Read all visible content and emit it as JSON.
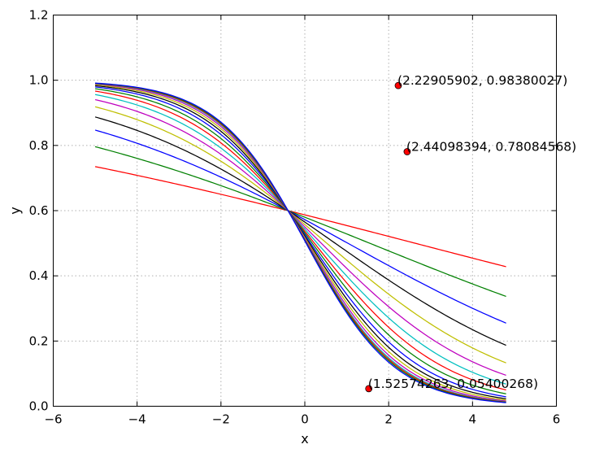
{
  "chart_data": {
    "type": "line",
    "title": "",
    "xlabel": "x",
    "ylabel": "y",
    "xlim": [
      -6,
      6
    ],
    "ylim": [
      0.0,
      1.2
    ],
    "grid": true,
    "x_ticks": [
      -6,
      -4,
      -2,
      0,
      2,
      4,
      6
    ],
    "x_tick_labels": [
      "−6",
      "−4",
      "−2",
      "0",
      "2",
      "4",
      "6"
    ],
    "y_ticks": [
      0.0,
      0.2,
      0.4,
      0.6,
      0.8,
      1.0,
      1.2
    ],
    "y_tick_labels": [
      "0.0",
      "0.2",
      "0.4",
      "0.6",
      "0.8",
      "1.0",
      "1.2"
    ],
    "x_range": [
      -5.0,
      4.8
    ],
    "series": [
      {
        "color": "#ff0000",
        "x": [
          -5.0,
          -2.5,
          -0.4,
          2.0,
          4.8
        ],
        "y": [
          0.735,
          0.67,
          0.6,
          0.52,
          0.428
        ]
      },
      {
        "color": "#008000",
        "x": [
          -5.0,
          -2.5,
          -0.4,
          2.0,
          4.8
        ],
        "y": [
          0.797,
          0.715,
          0.6,
          0.46,
          0.337
        ]
      },
      {
        "color": "#0000ff",
        "x": [
          -5.0,
          -2.5,
          -0.4,
          2.0,
          4.8
        ],
        "y": [
          0.848,
          0.765,
          0.6,
          0.4,
          0.255
        ]
      },
      {
        "color": "#000000",
        "x": [
          -5.0,
          -2.5,
          -0.4,
          2.0,
          4.8
        ],
        "y": [
          0.89,
          0.805,
          0.6,
          0.35,
          0.187
        ]
      },
      {
        "color": "#bfbf00",
        "x": [
          -5.0,
          -2.5,
          -0.4,
          2.0,
          4.8
        ],
        "y": [
          0.92,
          0.84,
          0.6,
          0.305,
          0.133
        ]
      },
      {
        "color": "#bf00bf",
        "x": [
          -5.0,
          -2.5,
          -0.4,
          2.0,
          4.8
        ],
        "y": [
          0.943,
          0.867,
          0.6,
          0.27,
          0.095
        ]
      },
      {
        "color": "#00bfbf",
        "x": [
          -5.0,
          -2.5,
          -0.4,
          2.0,
          4.8
        ],
        "y": [
          0.96,
          0.888,
          0.6,
          0.24,
          0.068
        ]
      },
      {
        "color": "#ff0000",
        "x": [
          -5.0,
          -2.5,
          -0.4,
          2.0,
          4.8
        ],
        "y": [
          0.971,
          0.905,
          0.6,
          0.215,
          0.05
        ]
      },
      {
        "color": "#008000",
        "x": [
          -5.0,
          -2.5,
          -0.4,
          2.0,
          4.8
        ],
        "y": [
          0.979,
          0.918,
          0.6,
          0.195,
          0.038
        ]
      },
      {
        "color": "#0000ff",
        "x": [
          -5.0,
          -2.5,
          -0.4,
          2.0,
          4.8
        ],
        "y": [
          0.985,
          0.928,
          0.6,
          0.18,
          0.029
        ]
      },
      {
        "color": "#000000",
        "x": [
          -5.0,
          -2.5,
          -0.4,
          2.0,
          4.8
        ],
        "y": [
          0.989,
          0.936,
          0.6,
          0.168,
          0.023
        ]
      },
      {
        "color": "#bfbf00",
        "x": [
          -5.0,
          -2.5,
          -0.4,
          2.0,
          4.8
        ],
        "y": [
          0.992,
          0.942,
          0.6,
          0.158,
          0.019
        ]
      },
      {
        "color": "#bf00bf",
        "x": [
          -5.0,
          -2.5,
          -0.4,
          2.0,
          4.8
        ],
        "y": [
          0.994,
          0.947,
          0.6,
          0.15,
          0.016
        ]
      },
      {
        "color": "#00bfbf",
        "x": [
          -5.0,
          -2.5,
          -0.4,
          2.0,
          4.8
        ],
        "y": [
          0.995,
          0.951,
          0.6,
          0.144,
          0.014
        ]
      },
      {
        "color": "#ff0000",
        "x": [
          -5.0,
          -2.5,
          -0.4,
          2.0,
          4.8
        ],
        "y": [
          0.996,
          0.954,
          0.6,
          0.139,
          0.013
        ]
      },
      {
        "color": "#008000",
        "x": [
          -5.0,
          -2.5,
          -0.4,
          2.0,
          4.8
        ],
        "y": [
          0.997,
          0.957,
          0.6,
          0.135,
          0.012
        ]
      },
      {
        "color": "#0000ff",
        "x": [
          -5.0,
          -2.5,
          -0.4,
          2.0,
          4.8
        ],
        "y": [
          0.998,
          0.959,
          0.6,
          0.131,
          0.011
        ]
      }
    ],
    "annotated_points": [
      {
        "x": 2.22905902,
        "y": 0.98380027,
        "label": "(2.22905902, 0.98380027)",
        "color": "#ff0000"
      },
      {
        "x": 2.44098394,
        "y": 0.78084568,
        "label": "(2.44098394, 0.78084568)",
        "color": "#ff0000"
      },
      {
        "x": 1.52574263,
        "y": 0.05400268,
        "label": "(1.52574263, 0.05400268)",
        "color": "#ff0000"
      }
    ]
  }
}
